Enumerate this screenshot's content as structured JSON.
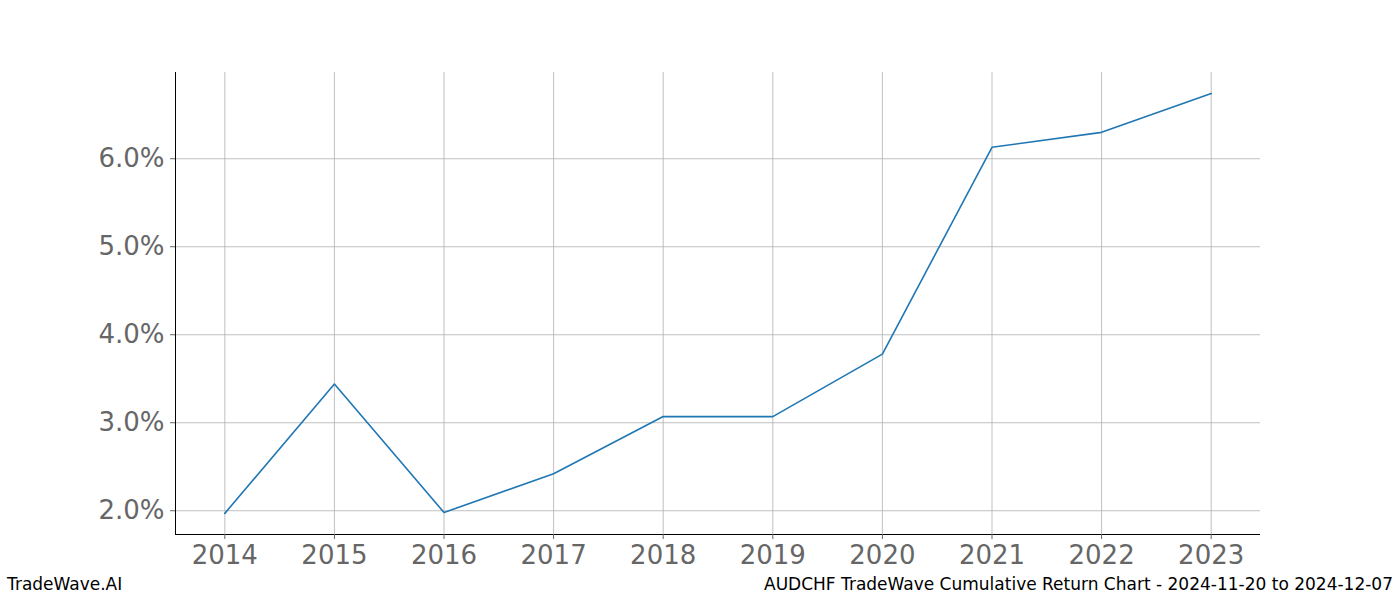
{
  "chart_data": {
    "type": "line",
    "title": "AUDCHF TradeWave Cumulative Return Chart - 2024-11-20 to 2024-12-07",
    "caption": "TradeWave.AI",
    "x": [
      2014,
      2015,
      2016,
      2017,
      2018,
      2019,
      2020,
      2021,
      2022,
      2023
    ],
    "values": [
      1.97,
      3.44,
      1.98,
      2.42,
      3.07,
      3.07,
      3.78,
      6.13,
      6.3,
      6.74
    ],
    "color": "#1f77b4",
    "xlim": [
      2013.55,
      2023.45
    ],
    "xticks": [
      2014,
      2015,
      2016,
      2017,
      2018,
      2019,
      2020,
      2021,
      2022,
      2023
    ],
    "ylim": [
      1.73,
      6.98
    ],
    "yticks": [
      {
        "value": 2,
        "label": "2.0%"
      },
      {
        "value": 3,
        "label": "3.0%"
      },
      {
        "value": 4,
        "label": "4.0%"
      },
      {
        "value": 5,
        "label": "5.0%"
      },
      {
        "value": 6,
        "label": "6.0%"
      }
    ],
    "grid": true
  }
}
